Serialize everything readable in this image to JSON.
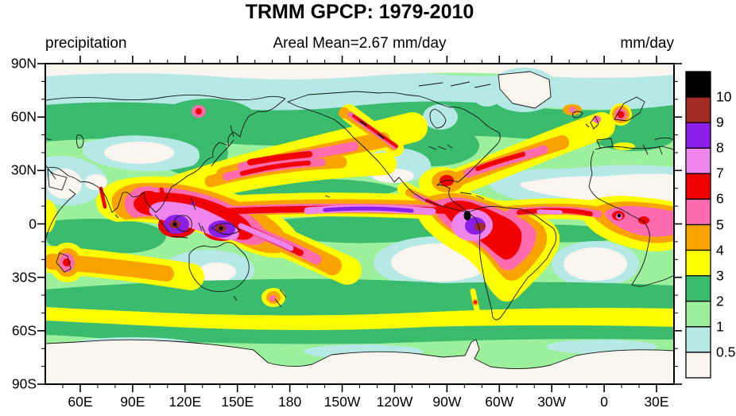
{
  "figure": {
    "title": "TRMM GPCP: 1979-2010",
    "left_subtitle": "precipitation",
    "center_subtitle": "Areal Mean=2.67 mm/day",
    "right_subtitle": "mm/day"
  },
  "chart_data": {
    "type": "heatmap",
    "variable": "precipitation",
    "units": "mm/day",
    "title": "TRMM GPCP: 1979-2010",
    "areal_mean_mm_per_day": 2.67,
    "projection": "global cylindrical equidistant, Pacific-centered",
    "lon_range_deg_east": [
      40,
      400
    ],
    "lat_range_deg": [
      -90,
      90
    ],
    "x_axis": {
      "tick_labels": [
        "60E",
        "90E",
        "120E",
        "150E",
        "180",
        "150W",
        "120W",
        "90W",
        "60W",
        "30W",
        "0",
        "30E"
      ],
      "tick_lons_deg_east": [
        60,
        90,
        120,
        150,
        180,
        210,
        240,
        270,
        300,
        330,
        360,
        390
      ],
      "minor_tick_step_deg": 10
    },
    "y_axis": {
      "tick_labels": [
        "90N",
        "60N",
        "30N",
        "0",
        "30S",
        "60S",
        "90S"
      ],
      "tick_lats_deg": [
        90,
        60,
        30,
        0,
        -30,
        -60,
        -90
      ],
      "minor_tick_step_deg": 10
    },
    "colorbar": {
      "orientation": "vertical, right side",
      "levels_mm_per_day": [
        0.5,
        1,
        2,
        3,
        4,
        5,
        6,
        7,
        8,
        9,
        10
      ],
      "labels_top_to_bottom": [
        "10",
        "9",
        "8",
        "7",
        "6",
        "5",
        "4",
        "3",
        "2",
        "1",
        "0.5"
      ],
      "band_colors_low_to_high": [
        "#FBF5F0",
        "#B6E8E6",
        "#9CF09C",
        "#3ABB6D",
        "#FEFE00",
        "#F9A300",
        "#FB6BAE",
        "#F10000",
        "#ED85ED",
        "#8B1FE8",
        "#A22C25",
        "#000000"
      ]
    },
    "notable_features": [
      "ITCZ band exceeding 6 mm/day across the equatorial Pacific and Atlantic near 5-10N",
      "Maxima above 10 mm/day over the Maritime Continent (Borneo, New Guinea) and NW South America (Colombia)",
      "SPCZ wet band extending southeastward from New Guinea",
      "South Asian monsoon maximum over the Bay of Bengal and west coast of India",
      "Dry zones below 0.5 mm/day: Sahara, Arabia, central Asia, interior Australia, subtropical SE Pacific and South Atlantic, polar caps",
      "Midlatitude storm tracks 3-6 mm/day over the NW Pacific and NW Atlantic",
      "Southern Ocean wet band 3-4 mm/day near 45-55S"
    ]
  }
}
